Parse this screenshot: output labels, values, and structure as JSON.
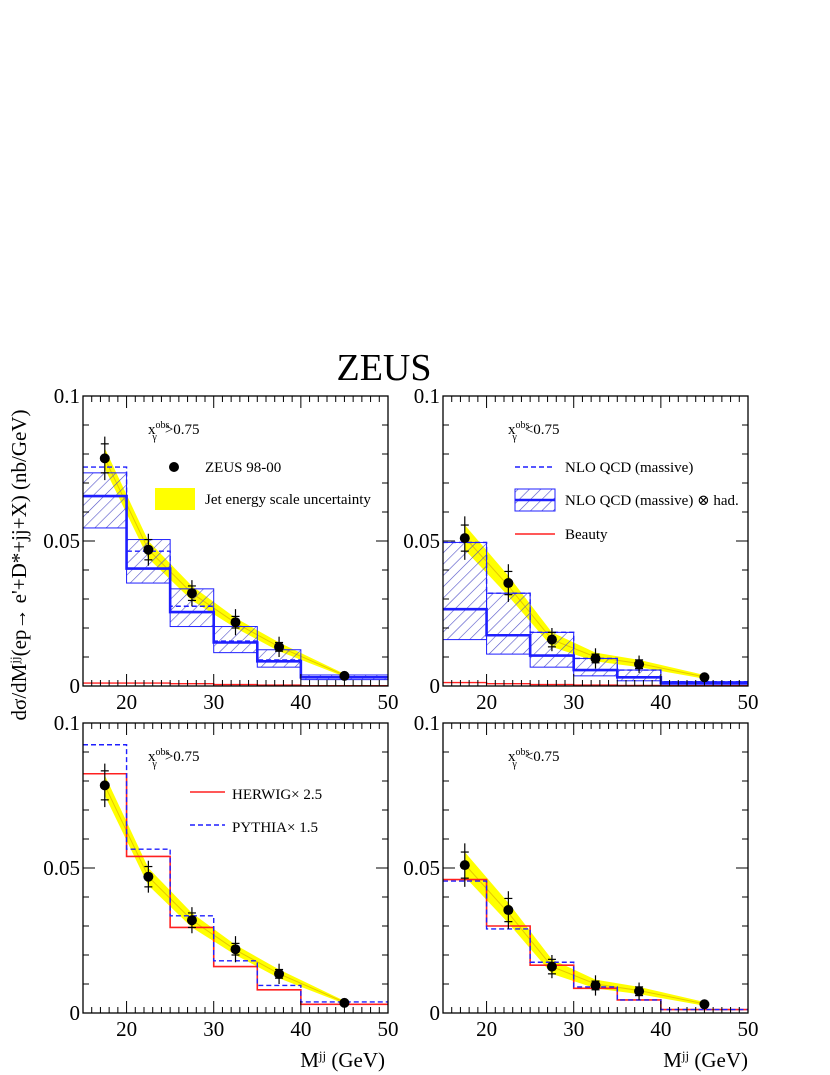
{
  "title": "ZEUS",
  "ylabel_html": "dσ/dM<tspan baseline-shift='super' font-size='13'>jj</tspan>(ep→ e'+D*+jj+X) (nb/GeV)",
  "ylabel_text": "dσ/dMjj(ep→ e'+D*+jj+X) (nb/GeV)",
  "xlabel": "M^jj (GeV)",
  "xlabel_main": "M",
  "xlabel_sup": "jj",
  "xlabel_unit": " (GeV)",
  "xticks": [
    "20",
    "30",
    "40",
    "50"
  ],
  "yticks": [
    "0",
    "0.05",
    "0.1"
  ],
  "colors": {
    "data": "#000000",
    "jes_band": "#ffff00",
    "nlo": "#1f1fff",
    "hatch": "#5050c8",
    "beauty": "#ff2020",
    "herwig": "#ff2020",
    "pythia": "#1f1fff"
  },
  "legend": {
    "data": "ZEUS 98-00",
    "jes": "Jet energy scale uncertainty",
    "nlo": "NLO QCD (massive)",
    "nlo_had": "NLO QCD (massive) ⊗ had.",
    "beauty": "Beauty",
    "herwig": "HERWIG× 2.5",
    "pythia": "PYTHIA× 1.5"
  },
  "chart_data": [
    {
      "type": "scatter",
      "panel": "top-left",
      "annotation": "x_γ^obs>0.75",
      "xlim": [
        15,
        50
      ],
      "ylim": [
        0,
        0.1
      ],
      "bins": [
        15,
        20,
        25,
        30,
        35,
        40,
        50
      ],
      "data": {
        "x": [
          17.5,
          22.5,
          27.5,
          32.5,
          37.5,
          45
        ],
        "y": [
          0.0785,
          0.047,
          0.032,
          0.022,
          0.0135,
          0.0035
        ],
        "stat_err": [
          0.005,
          0.0035,
          0.0025,
          0.002,
          0.0015,
          0.0005
        ],
        "syst_err": [
          0.0075,
          0.0055,
          0.0045,
          0.0045,
          0.0035,
          0.001
        ]
      },
      "jes_band": {
        "x": [
          17.5,
          22.5,
          27.5,
          32.5,
          37.5,
          45
        ],
        "low": [
          0.075,
          0.044,
          0.0295,
          0.02,
          0.012,
          0.0032
        ],
        "high": [
          0.082,
          0.05,
          0.0345,
          0.0235,
          0.015,
          0.0042
        ]
      },
      "nlo": [
        0.0755,
        0.0465,
        0.0275,
        0.0155,
        0.009,
        0.0032
      ],
      "nlo_had": {
        "central": [
          0.0655,
          0.0405,
          0.0255,
          0.015,
          0.0085,
          0.003
        ],
        "low": [
          0.0545,
          0.0355,
          0.0205,
          0.0115,
          0.0065,
          0.0022
        ],
        "high": [
          0.0735,
          0.0505,
          0.0335,
          0.0205,
          0.0125,
          0.0038
        ]
      },
      "beauty": [
        0.001,
        0.001,
        0.0008,
        0.0005,
        0.0003,
        0.0001
      ]
    },
    {
      "type": "scatter",
      "panel": "top-right",
      "annotation": "x_γ^obs<0.75",
      "xlim": [
        15,
        50
      ],
      "ylim": [
        0,
        0.1
      ],
      "bins": [
        15,
        20,
        25,
        30,
        35,
        40,
        50
      ],
      "data": {
        "x": [
          17.5,
          22.5,
          27.5,
          32.5,
          37.5,
          45
        ],
        "y": [
          0.051,
          0.0355,
          0.016,
          0.0095,
          0.0075,
          0.003
        ],
        "stat_err": [
          0.0045,
          0.004,
          0.0025,
          0.0015,
          0.0015,
          0.0005
        ],
        "syst_err": [
          0.0075,
          0.0065,
          0.004,
          0.0035,
          0.003,
          0.0008
        ]
      },
      "jes_band": {
        "x": [
          17.5,
          22.5,
          27.5,
          32.5,
          37.5,
          45
        ],
        "low": [
          0.047,
          0.031,
          0.0135,
          0.0085,
          0.0065,
          0.0025
        ],
        "high": [
          0.0555,
          0.038,
          0.0185,
          0.0115,
          0.009,
          0.0038
        ]
      },
      "nlo": [
        0.0495,
        0.032,
        0.0185,
        0.0095,
        0.0055,
        0.0015
      ],
      "nlo_had": {
        "central": [
          0.0265,
          0.0175,
          0.0105,
          0.0055,
          0.003,
          0.001
        ],
        "low": [
          0.016,
          0.011,
          0.0065,
          0.0035,
          0.0018,
          0.0006
        ],
        "high": [
          0.0495,
          0.032,
          0.0185,
          0.0095,
          0.0055,
          0.0015
        ]
      },
      "beauty": [
        0.0012,
        0.0008,
        0.0005,
        0.0003,
        0.0002,
        0.0001
      ]
    },
    {
      "type": "scatter",
      "panel": "bottom-left",
      "annotation": "x_γ^obs>0.75",
      "xlim": [
        15,
        50
      ],
      "ylim": [
        0,
        0.1
      ],
      "bins": [
        15,
        20,
        25,
        30,
        35,
        40,
        50
      ],
      "data": {
        "x": [
          17.5,
          22.5,
          27.5,
          32.5,
          37.5,
          45
        ],
        "y": [
          0.0785,
          0.047,
          0.032,
          0.022,
          0.0135,
          0.0035
        ],
        "stat_err": [
          0.005,
          0.0035,
          0.0025,
          0.002,
          0.0015,
          0.0005
        ],
        "syst_err": [
          0.0075,
          0.0055,
          0.0045,
          0.0045,
          0.0035,
          0.001
        ]
      },
      "jes_band": {
        "x": [
          17.5,
          22.5,
          27.5,
          32.5,
          37.5,
          45
        ],
        "low": [
          0.075,
          0.044,
          0.0295,
          0.02,
          0.012,
          0.0032
        ],
        "high": [
          0.082,
          0.05,
          0.0345,
          0.0235,
          0.015,
          0.0042
        ]
      },
      "herwig": [
        0.0825,
        0.054,
        0.0295,
        0.016,
        0.008,
        0.003
      ],
      "pythia": [
        0.0925,
        0.0565,
        0.0335,
        0.018,
        0.0095,
        0.0038
      ]
    },
    {
      "type": "scatter",
      "panel": "bottom-right",
      "annotation": "x_γ^obs<0.75",
      "xlim": [
        15,
        50
      ],
      "ylim": [
        0,
        0.1
      ],
      "bins": [
        15,
        20,
        25,
        30,
        35,
        40,
        50
      ],
      "data": {
        "x": [
          17.5,
          22.5,
          27.5,
          32.5,
          37.5,
          45
        ],
        "y": [
          0.051,
          0.0355,
          0.016,
          0.0095,
          0.0075,
          0.003
        ],
        "stat_err": [
          0.0045,
          0.004,
          0.0025,
          0.0015,
          0.0015,
          0.0005
        ],
        "syst_err": [
          0.0075,
          0.0065,
          0.004,
          0.0035,
          0.003,
          0.0008
        ]
      },
      "jes_band": {
        "x": [
          17.5,
          22.5,
          27.5,
          32.5,
          37.5,
          45
        ],
        "low": [
          0.047,
          0.031,
          0.0135,
          0.0085,
          0.0065,
          0.0025
        ],
        "high": [
          0.0555,
          0.038,
          0.0185,
          0.0115,
          0.009,
          0.0038
        ]
      },
      "herwig": [
        0.046,
        0.03,
        0.0165,
        0.0085,
        0.0045,
        0.0012
      ],
      "pythia": [
        0.0455,
        0.029,
        0.0175,
        0.009,
        0.0045,
        0.0012
      ]
    }
  ]
}
